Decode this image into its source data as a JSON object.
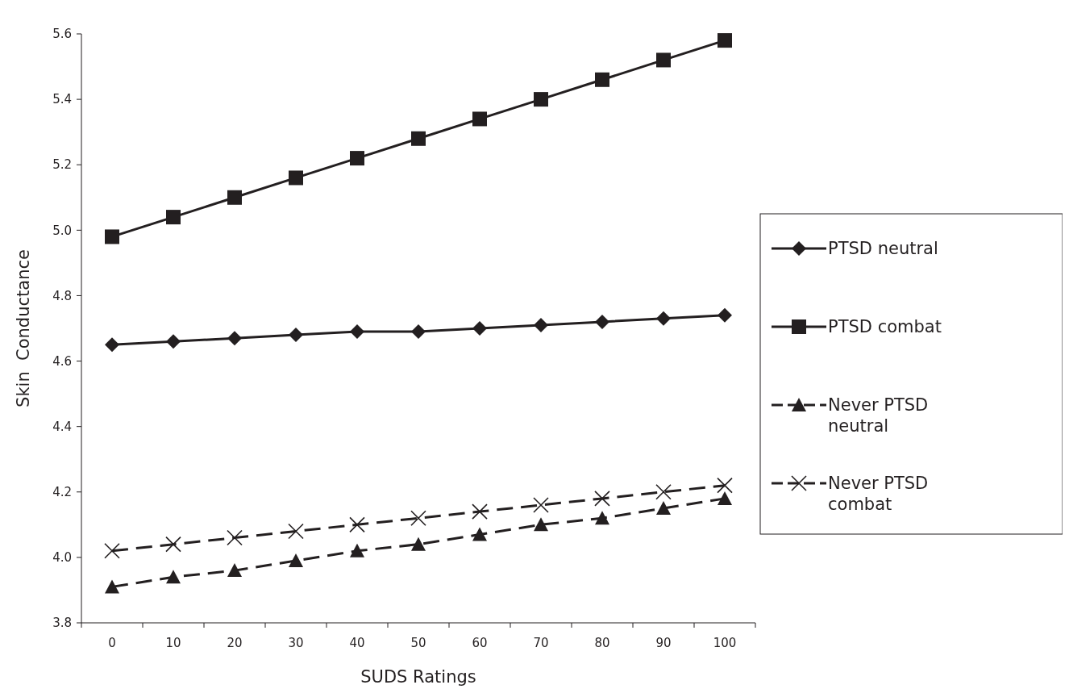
{
  "chart_data": {
    "type": "line",
    "xlabel": "SUDS Ratings",
    "ylabel": "Skin  Conductance",
    "categories": [
      "0",
      "10",
      "20",
      "30",
      "40",
      "50",
      "60",
      "70",
      "80",
      "90",
      "100"
    ],
    "ylim": [
      3.8,
      5.6
    ],
    "yticks": [
      {
        "value": 3.8,
        "label": "3.8"
      },
      {
        "value": 4.0,
        "label": "4.0"
      },
      {
        "value": 4.2,
        "label": "4.2"
      },
      {
        "value": 4.4,
        "label": "4.4"
      },
      {
        "value": 4.6,
        "label": "4.6"
      },
      {
        "value": 4.8,
        "label": "4.8"
      },
      {
        "value": 5.0,
        "label": "5.0"
      },
      {
        "value": 5.2,
        "label": "5.2"
      },
      {
        "value": 5.4,
        "label": "5.4"
      },
      {
        "value": 5.6,
        "label": "5.6"
      }
    ],
    "grid": false,
    "legend": "right",
    "series": [
      {
        "name": "PTSD neutral",
        "color": "#231f20",
        "marker": "diamond",
        "line_style": "solid",
        "values": [
          4.65,
          4.66,
          4.67,
          4.68,
          4.69,
          4.69,
          4.7,
          4.71,
          4.72,
          4.73,
          4.74
        ]
      },
      {
        "name": "PTSD combat",
        "color": "#231f20",
        "marker": "square",
        "line_style": "solid",
        "values": [
          4.98,
          5.04,
          5.1,
          5.16,
          5.22,
          5.28,
          5.34,
          5.4,
          5.46,
          5.52,
          5.58
        ]
      },
      {
        "name": "Never PTSD neutral",
        "color": "#231f20",
        "marker": "triangle",
        "line_style": "dashed",
        "values": [
          3.91,
          3.94,
          3.96,
          3.99,
          4.02,
          4.04,
          4.07,
          4.1,
          4.12,
          4.15,
          4.18
        ]
      },
      {
        "name": "Never PTSD combat",
        "color": "#231f20",
        "marker": "cross",
        "line_style": "dashed",
        "values": [
          4.02,
          4.04,
          4.06,
          4.08,
          4.1,
          4.12,
          4.14,
          4.16,
          4.18,
          4.2,
          4.22
        ]
      }
    ]
  }
}
